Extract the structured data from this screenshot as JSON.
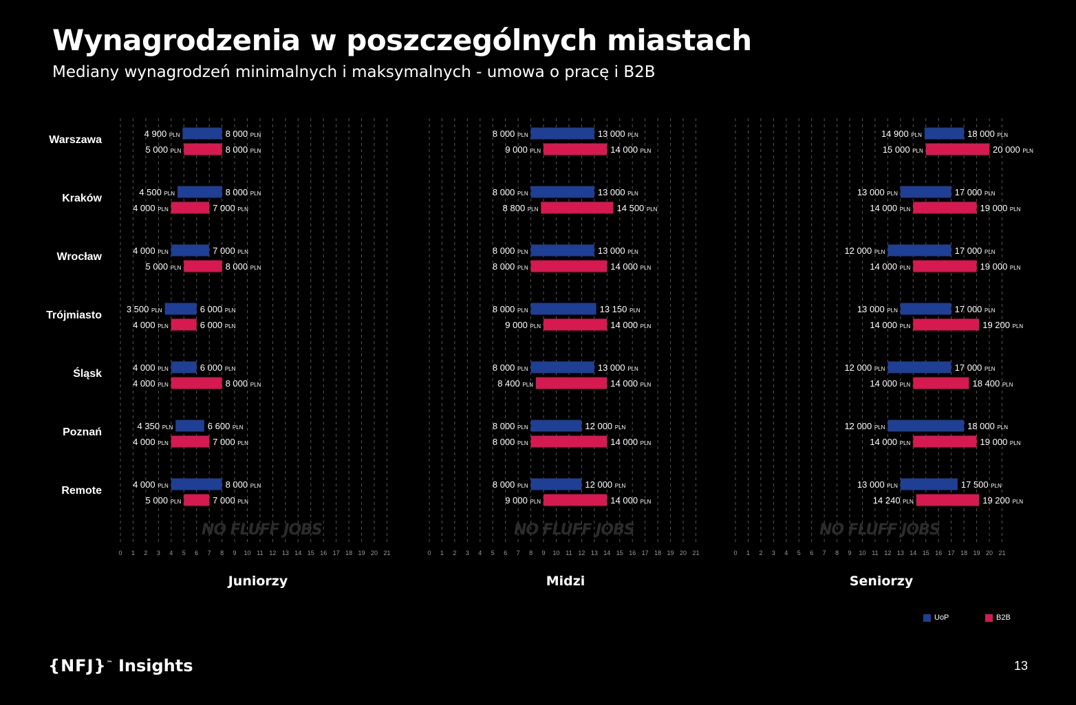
{
  "page": {
    "title": "Wynagrodzenia w poszczególnych miastach",
    "subtitle": "Mediany wynagrodzeń minimalnych i maksymalnych - umowa o pracę i B2B",
    "page_number": "13",
    "footer_brand": "{NFJ}",
    "footer_tm": "™",
    "footer_label": "Insights",
    "watermark": "NO FLUFF JOBS"
  },
  "colors": {
    "uop": "#1e3f94",
    "b2b": "#d61a51",
    "background": "#000000",
    "grid": "#777777"
  },
  "legend": [
    {
      "label": "UoP",
      "color": "#1e3f94"
    },
    {
      "label": "B2B",
      "color": "#d61a51"
    }
  ],
  "cities": [
    "Warszawa",
    "Kraków",
    "Wrocław",
    "Trójmiasto",
    "Śląsk",
    "Poznań",
    "Remote"
  ],
  "chart_data": [
    {
      "type": "bar",
      "subtype": "floating-range-horizontal",
      "title": "Juniorzy",
      "unit": "PLN",
      "x_ticks": [
        0,
        1,
        2,
        3,
        4,
        5,
        6,
        7,
        8,
        9,
        10,
        11,
        12,
        13,
        14,
        15,
        16,
        17,
        18,
        19,
        20,
        21
      ],
      "xlim": [
        0,
        21
      ],
      "grid": true,
      "categories": [
        "Warszawa",
        "Kraków",
        "Wrocław",
        "Trójmiasto",
        "Śląsk",
        "Poznań",
        "Remote"
      ],
      "series": [
        {
          "name": "UoP",
          "min": [
            4900,
            4500,
            4000,
            3500,
            4000,
            4350,
            4000
          ],
          "max": [
            8000,
            8000,
            7000,
            6000,
            6000,
            6600,
            8000
          ]
        },
        {
          "name": "B2B",
          "min": [
            5000,
            4000,
            5000,
            4000,
            4000,
            4000,
            5000
          ],
          "max": [
            8000,
            7000,
            8000,
            6000,
            8000,
            7000,
            7000
          ]
        }
      ]
    },
    {
      "type": "bar",
      "subtype": "floating-range-horizontal",
      "title": "Midzi",
      "unit": "PLN",
      "x_ticks": [
        0,
        1,
        2,
        3,
        4,
        5,
        6,
        7,
        8,
        9,
        10,
        11,
        12,
        13,
        14,
        15,
        16,
        17,
        18,
        19,
        20,
        21
      ],
      "xlim": [
        0,
        21
      ],
      "grid": true,
      "categories": [
        "Warszawa",
        "Kraków",
        "Wrocław",
        "Trójmiasto",
        "Śląsk",
        "Poznań",
        "Remote"
      ],
      "series": [
        {
          "name": "UoP",
          "min": [
            8000,
            8000,
            8000,
            8000,
            8000,
            8000,
            8000
          ],
          "max": [
            13000,
            13000,
            13000,
            13150,
            13000,
            12000,
            12000
          ]
        },
        {
          "name": "B2B",
          "min": [
            9000,
            8800,
            8000,
            9000,
            8400,
            8000,
            9000
          ],
          "max": [
            14000,
            14500,
            14000,
            14000,
            14000,
            14000,
            14000
          ]
        }
      ]
    },
    {
      "type": "bar",
      "subtype": "floating-range-horizontal",
      "title": "Seniorzy",
      "unit": "PLN",
      "x_ticks": [
        0,
        1,
        2,
        3,
        4,
        5,
        6,
        7,
        8,
        9,
        10,
        11,
        12,
        13,
        14,
        15,
        16,
        17,
        18,
        19,
        20,
        21
      ],
      "xlim": [
        0,
        21
      ],
      "grid": true,
      "categories": [
        "Warszawa",
        "Kraków",
        "Wrocław",
        "Trójmiasto",
        "Śląsk",
        "Poznań",
        "Remote"
      ],
      "series": [
        {
          "name": "UoP",
          "min": [
            14900,
            13000,
            12000,
            13000,
            12000,
            12000,
            13000
          ],
          "max": [
            18000,
            17000,
            17000,
            17000,
            17000,
            18000,
            17500
          ]
        },
        {
          "name": "B2B",
          "min": [
            15000,
            14000,
            14000,
            14000,
            14000,
            14000,
            14240
          ],
          "max": [
            20000,
            19000,
            19000,
            19200,
            18400,
            19000,
            19200
          ]
        }
      ]
    }
  ]
}
